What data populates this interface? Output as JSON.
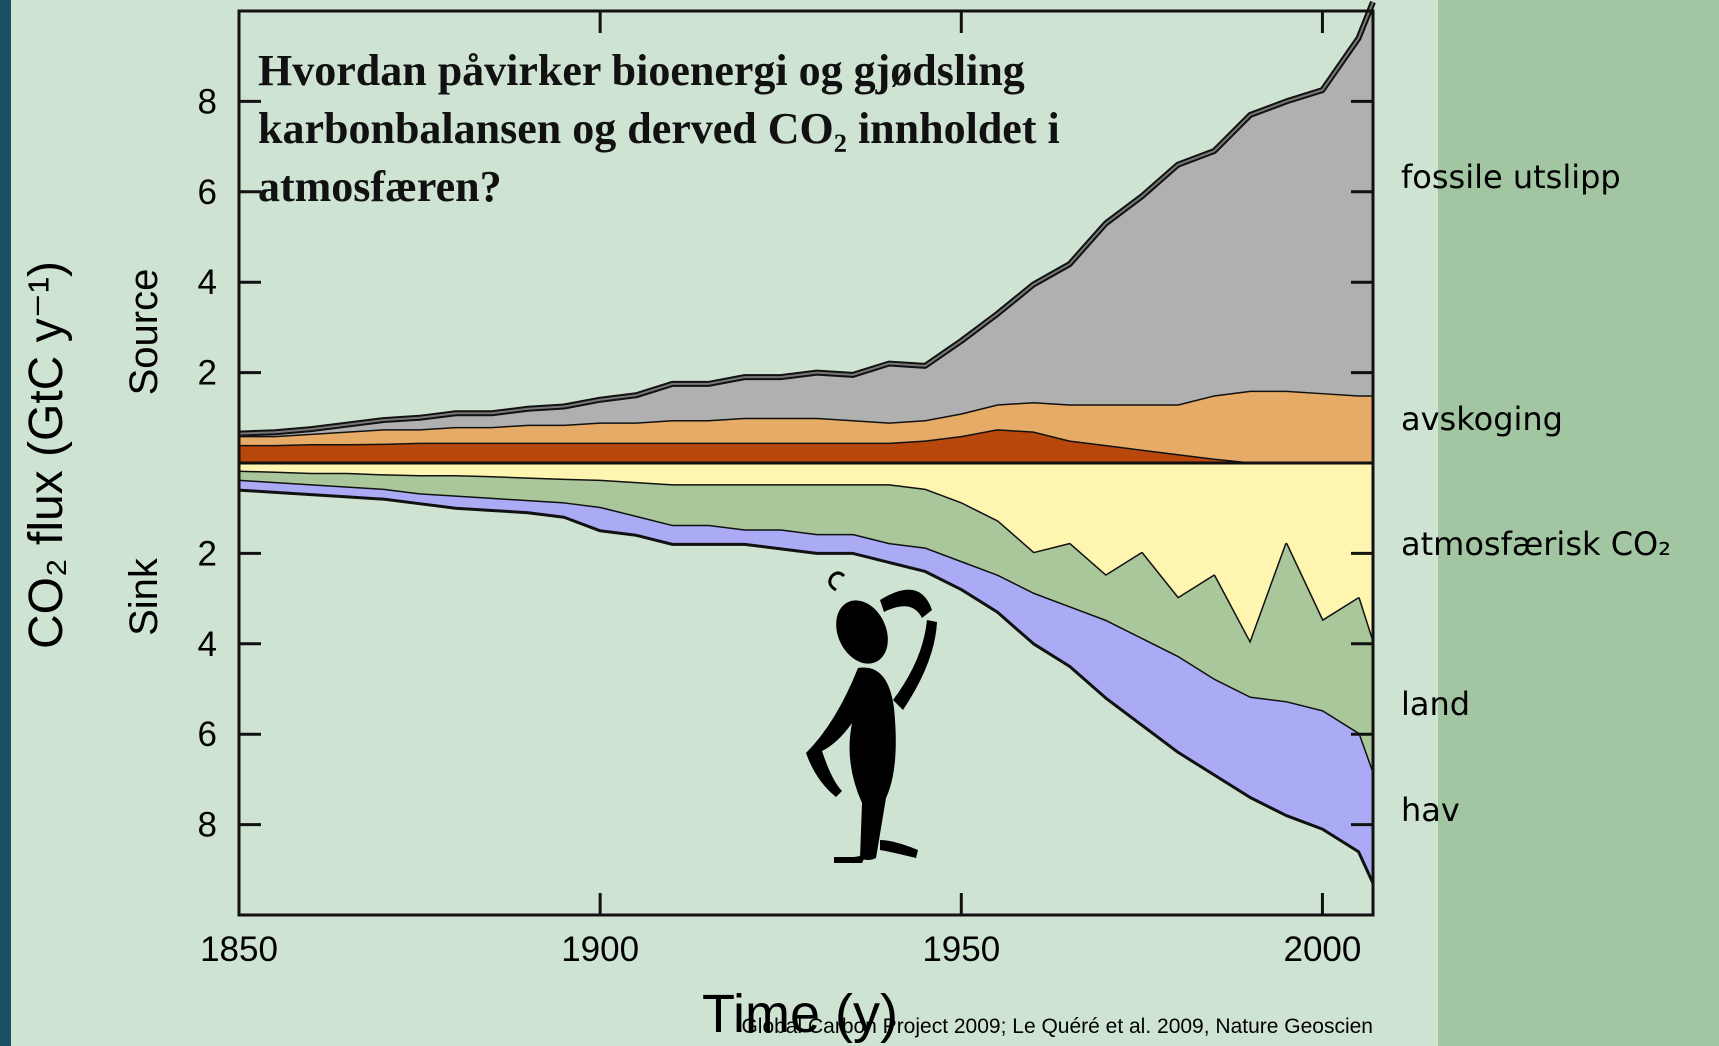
{
  "chart_data": {
    "type": "area",
    "title": "Hvordan påvirker bioenergi og gjødsling karbonbalansen og derved CO₂ innholdet i atmosfæren?",
    "y_title": "CO₂ flux (GtC y⁻¹)",
    "x_title": "Time (y)",
    "source_label": "Source",
    "sink_label": "Sink",
    "credit": "Global Carbon Project 2009; Le Quéré et al. 2009, Nature Geoscien",
    "x": [
      1850,
      1855,
      1860,
      1865,
      1870,
      1875,
      1880,
      1885,
      1890,
      1895,
      1900,
      1905,
      1910,
      1915,
      1920,
      1925,
      1930,
      1935,
      1940,
      1945,
      1950,
      1955,
      1960,
      1965,
      1970,
      1975,
      1980,
      1985,
      1990,
      1995,
      2000,
      2005,
      2007
    ],
    "xlim": [
      1850,
      2007
    ],
    "xticks": [
      1850,
      1900,
      1950,
      2000
    ],
    "ylim": [
      -10,
      10
    ],
    "yticks": [
      {
        "value": -8,
        "label": "8"
      },
      {
        "value": -6,
        "label": "6"
      },
      {
        "value": -4,
        "label": "4"
      },
      {
        "value": -2,
        "label": "2"
      },
      2,
      4,
      6,
      8
    ],
    "series": [
      {
        "color": "#b8470c",
        "values": [
          0.4,
          0.4,
          0.42,
          0.42,
          0.43,
          0.45,
          0.45,
          0.45,
          0.45,
          0.45,
          0.45,
          0.45,
          0.45,
          0.45,
          0.45,
          0.45,
          0.45,
          0.45,
          0.45,
          0.5,
          0.6,
          0.75,
          0.7,
          0.5,
          0.4,
          0.3,
          0.2,
          0.1,
          0.02,
          0,
          0,
          0,
          0
        ]
      },
      {
        "name": "avskoging",
        "color": "#e6ab66",
        "values": [
          0.2,
          0.2,
          0.23,
          0.28,
          0.32,
          0.3,
          0.35,
          0.35,
          0.4,
          0.4,
          0.45,
          0.45,
          0.5,
          0.5,
          0.55,
          0.55,
          0.55,
          0.5,
          0.45,
          0.45,
          0.5,
          0.55,
          0.65,
          0.8,
          0.9,
          1.0,
          1.1,
          1.4,
          1.58,
          1.6,
          1.55,
          1.5,
          1.5
        ]
      },
      {
        "name": "fossile utslipp",
        "color": "#b0b0b0",
        "values": [
          0.05,
          0.08,
          0.1,
          0.15,
          0.2,
          0.25,
          0.3,
          0.3,
          0.35,
          0.4,
          0.5,
          0.6,
          0.8,
          0.8,
          0.9,
          0.9,
          1.0,
          1.0,
          1.3,
          1.2,
          1.6,
          2.0,
          2.6,
          3.1,
          4.0,
          4.6,
          5.3,
          5.4,
          6.1,
          6.4,
          6.7,
          7.9,
          8.7
        ]
      },
      {
        "name": "atmosfærisk CO₂",
        "color": "#fdf5b0",
        "values": [
          -0.2,
          -0.22,
          -0.25,
          -0.25,
          -0.28,
          -0.3,
          -0.3,
          -0.32,
          -0.35,
          -0.38,
          -0.4,
          -0.45,
          -0.5,
          -0.5,
          -0.5,
          -0.5,
          -0.5,
          -0.5,
          -0.5,
          -0.6,
          -0.9,
          -1.3,
          -2.0,
          -1.8,
          -2.5,
          -2.0,
          -3.0,
          -2.5,
          -4.0,
          -1.8,
          -3.5,
          -3.0,
          -4.0
        ]
      },
      {
        "name": "land",
        "color": "#a9c79a",
        "values": [
          -0.2,
          -0.23,
          -0.25,
          -0.3,
          -0.32,
          -0.4,
          -0.45,
          -0.48,
          -0.5,
          -0.52,
          -0.6,
          -0.75,
          -0.9,
          -0.9,
          -1.0,
          -1.0,
          -1.1,
          -1.1,
          -1.3,
          -1.3,
          -1.3,
          -1.2,
          -0.9,
          -1.4,
          -1.0,
          -1.9,
          -1.3,
          -2.3,
          -1.2,
          -3.5,
          -2.0,
          -3.0,
          -2.9
        ]
      },
      {
        "name": "hav",
        "color": "#aaaaf5",
        "values": [
          -0.2,
          -0.2,
          -0.2,
          -0.2,
          -0.2,
          -0.2,
          -0.25,
          -0.25,
          -0.25,
          -0.3,
          -0.5,
          -0.4,
          -0.4,
          -0.4,
          -0.3,
          -0.4,
          -0.4,
          -0.4,
          -0.4,
          -0.5,
          -0.6,
          -0.8,
          -1.1,
          -1.3,
          -1.7,
          -1.9,
          -2.1,
          -2.1,
          -2.2,
          -2.5,
          -2.6,
          -2.6,
          -2.4
        ]
      }
    ]
  }
}
